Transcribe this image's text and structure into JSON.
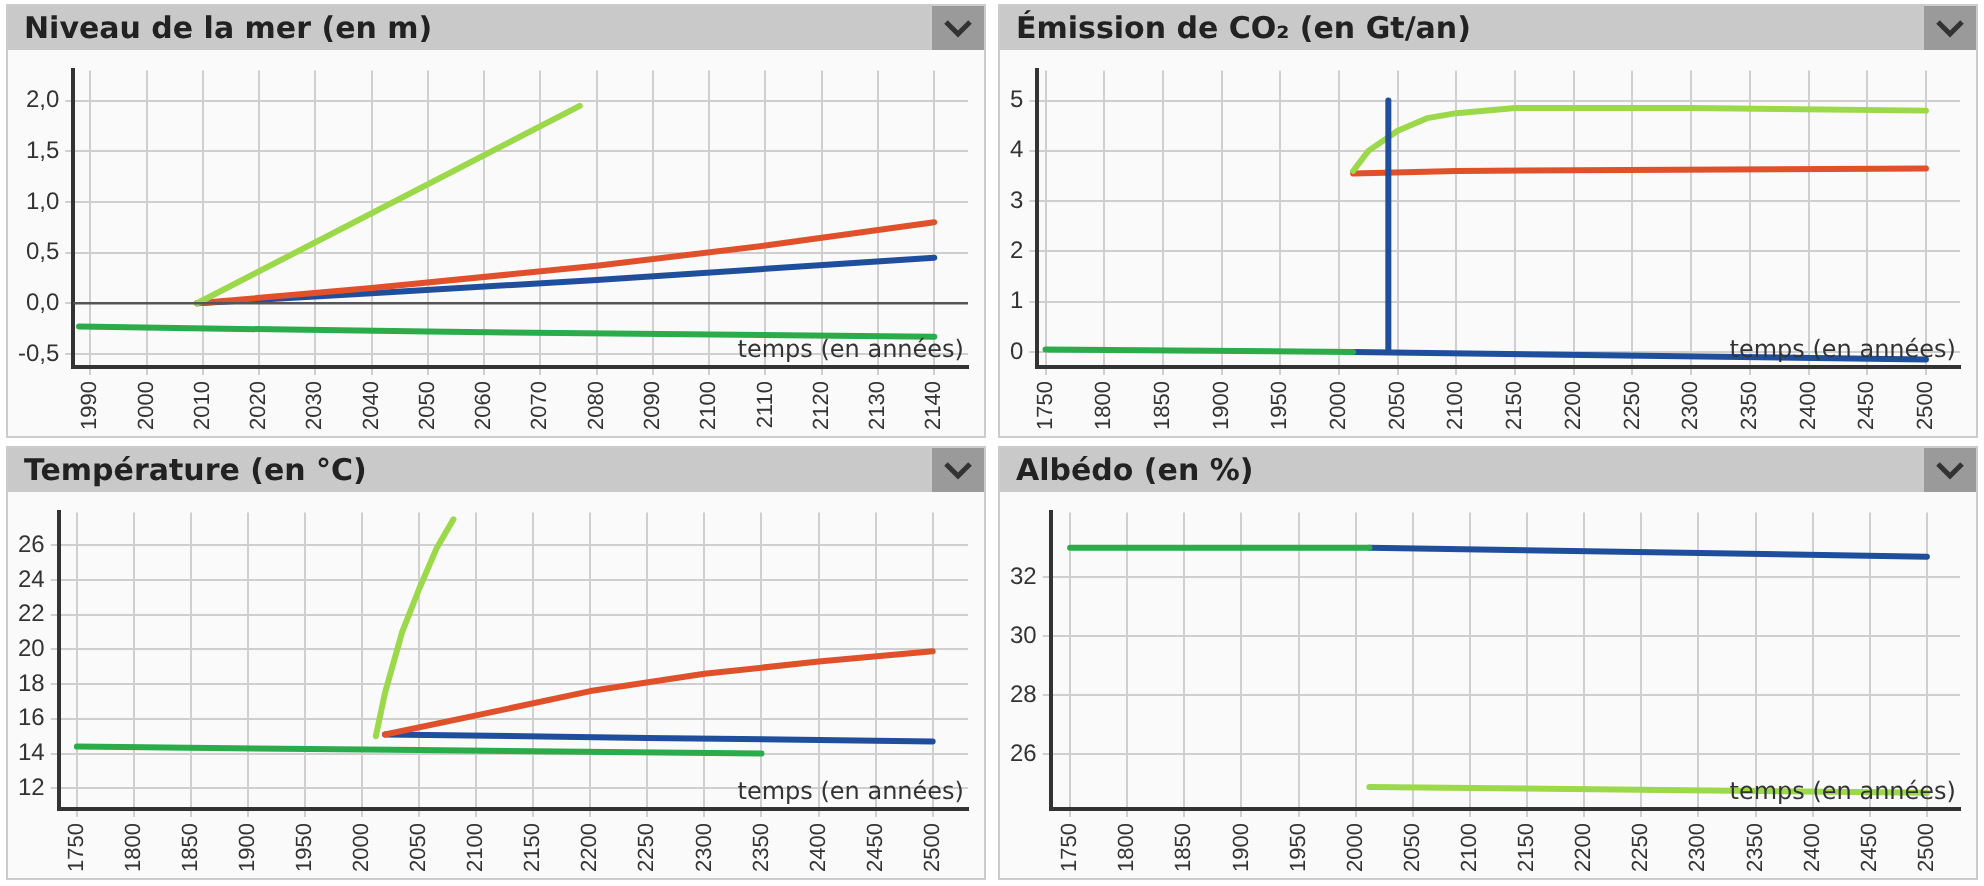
{
  "chart_data": [
    {
      "type": "line",
      "title": "Niveau de la mer (en m)",
      "xlabel": "temps (en années)",
      "xlim": [
        1987,
        2146
      ],
      "xticks": [
        1990,
        2000,
        2010,
        2020,
        2030,
        2040,
        2050,
        2060,
        2070,
        2080,
        2090,
        2100,
        2110,
        2120,
        2130,
        2140
      ],
      "ylim": [
        -0.63,
        2.3
      ],
      "yticks": [
        {
          "value": -0.5,
          "label": "-0,5"
        },
        {
          "value": 0,
          "label": "0,0"
        },
        {
          "value": 0.5,
          "label": "0,5"
        },
        {
          "value": 1,
          "label": "1,0"
        },
        {
          "value": 1.5,
          "label": "1,5"
        },
        {
          "value": 2,
          "label": "2,0"
        }
      ],
      "grid": true,
      "marker": "none",
      "ref_lines": [
        {
          "axis": "y",
          "value": 0,
          "color": "#555555"
        }
      ],
      "series": [
        {
          "color": "#2bab4a",
          "x": [
            1988,
            2050,
            2140
          ],
          "values": [
            -0.23,
            -0.28,
            -0.33
          ]
        },
        {
          "color": "#9bd84a",
          "x": [
            2009,
            2077
          ],
          "values": [
            0,
            1.95
          ]
        },
        {
          "color": "#e0502a",
          "x": [
            2009,
            2040,
            2080,
            2110,
            2140
          ],
          "values": [
            0,
            0.15,
            0.37,
            0.57,
            0.8
          ]
        },
        {
          "color": "#1f4e9c",
          "x": [
            2009,
            2040,
            2080,
            2110,
            2140
          ],
          "values": [
            0,
            0.1,
            0.23,
            0.34,
            0.45
          ]
        }
      ]
    },
    {
      "type": "line",
      "title": "Émission de CO₂ (en Gt/an)",
      "xlabel": "temps (en années)",
      "xlim": [
        1743,
        2529
      ],
      "xticks": [
        1750,
        1800,
        1850,
        1900,
        1950,
        2000,
        2050,
        2100,
        2150,
        2200,
        2250,
        2300,
        2350,
        2400,
        2450,
        2500
      ],
      "ylim": [
        -0.3,
        5.6
      ],
      "yticks": [
        0,
        1,
        2,
        3,
        4,
        5
      ],
      "grid": true,
      "marker": "none",
      "series": [
        {
          "color": "#2bab4a",
          "x": [
            1750,
            2012
          ],
          "values": [
            0.05,
            0
          ]
        },
        {
          "color": "#1f4e9c",
          "x": [
            2012,
            2500
          ],
          "values": [
            0,
            -0.15
          ]
        },
        {
          "color": "#1f4e9c",
          "x": [
            2042,
            2042
          ],
          "values": [
            5,
            0
          ]
        },
        {
          "color": "#9bd84a",
          "x": [
            2012,
            2025,
            2050,
            2075,
            2100,
            2150,
            2300,
            2500
          ],
          "values": [
            3.6,
            4.0,
            4.4,
            4.65,
            4.75,
            4.85,
            4.85,
            4.8
          ]
        },
        {
          "color": "#e0502a",
          "x": [
            2012,
            2100,
            2500
          ],
          "values": [
            3.55,
            3.6,
            3.65
          ]
        }
      ]
    },
    {
      "type": "line",
      "title": "Température (en °C)",
      "xlabel": "temps (en années)",
      "xlim": [
        1734,
        2531
      ],
      "xticks": [
        1750,
        1800,
        1850,
        1900,
        1950,
        2000,
        2050,
        2100,
        2150,
        2200,
        2250,
        2300,
        2350,
        2400,
        2450,
        2500
      ],
      "ylim": [
        10.8,
        27.9
      ],
      "yticks": [
        12,
        14,
        16,
        18,
        20,
        22,
        24,
        26
      ],
      "grid": true,
      "marker": "none",
      "series": [
        {
          "color": "#2bab4a",
          "x": [
            1750,
            2050,
            2350
          ],
          "values": [
            14.4,
            14.2,
            14.0
          ]
        },
        {
          "color": "#9bd84a",
          "x": [
            2012,
            2020,
            2035,
            2050,
            2065,
            2080
          ],
          "values": [
            15.0,
            17.5,
            21,
            23.5,
            25.8,
            27.5
          ]
        },
        {
          "color": "#e0502a",
          "x": [
            2020,
            2100,
            2200,
            2300,
            2400,
            2500
          ],
          "values": [
            15.1,
            16.2,
            17.6,
            18.6,
            19.3,
            19.9
          ]
        },
        {
          "color": "#1f4e9c",
          "x": [
            2020,
            2250,
            2500
          ],
          "values": [
            15.1,
            14.9,
            14.7
          ]
        }
      ]
    },
    {
      "type": "line",
      "title": "Albédo (en %)",
      "xlabel": "temps (en années)",
      "xlim": [
        1733,
        2529
      ],
      "xticks": [
        1750,
        1800,
        1850,
        1900,
        1950,
        2000,
        2050,
        2100,
        2150,
        2200,
        2250,
        2300,
        2350,
        2400,
        2450,
        2500
      ],
      "ylim": [
        24.15,
        34.2
      ],
      "yticks": [
        26,
        28,
        30,
        32
      ],
      "grid": true,
      "marker": "none",
      "series": [
        {
          "color": "#2bab4a",
          "x": [
            1750,
            2012
          ],
          "values": [
            33.0,
            33.0
          ]
        },
        {
          "color": "#1f4e9c",
          "x": [
            2012,
            2500
          ],
          "values": [
            33.0,
            32.7
          ]
        },
        {
          "color": "#9bd84a",
          "x": [
            2012,
            2500
          ],
          "values": [
            24.9,
            24.7
          ]
        }
      ]
    }
  ]
}
